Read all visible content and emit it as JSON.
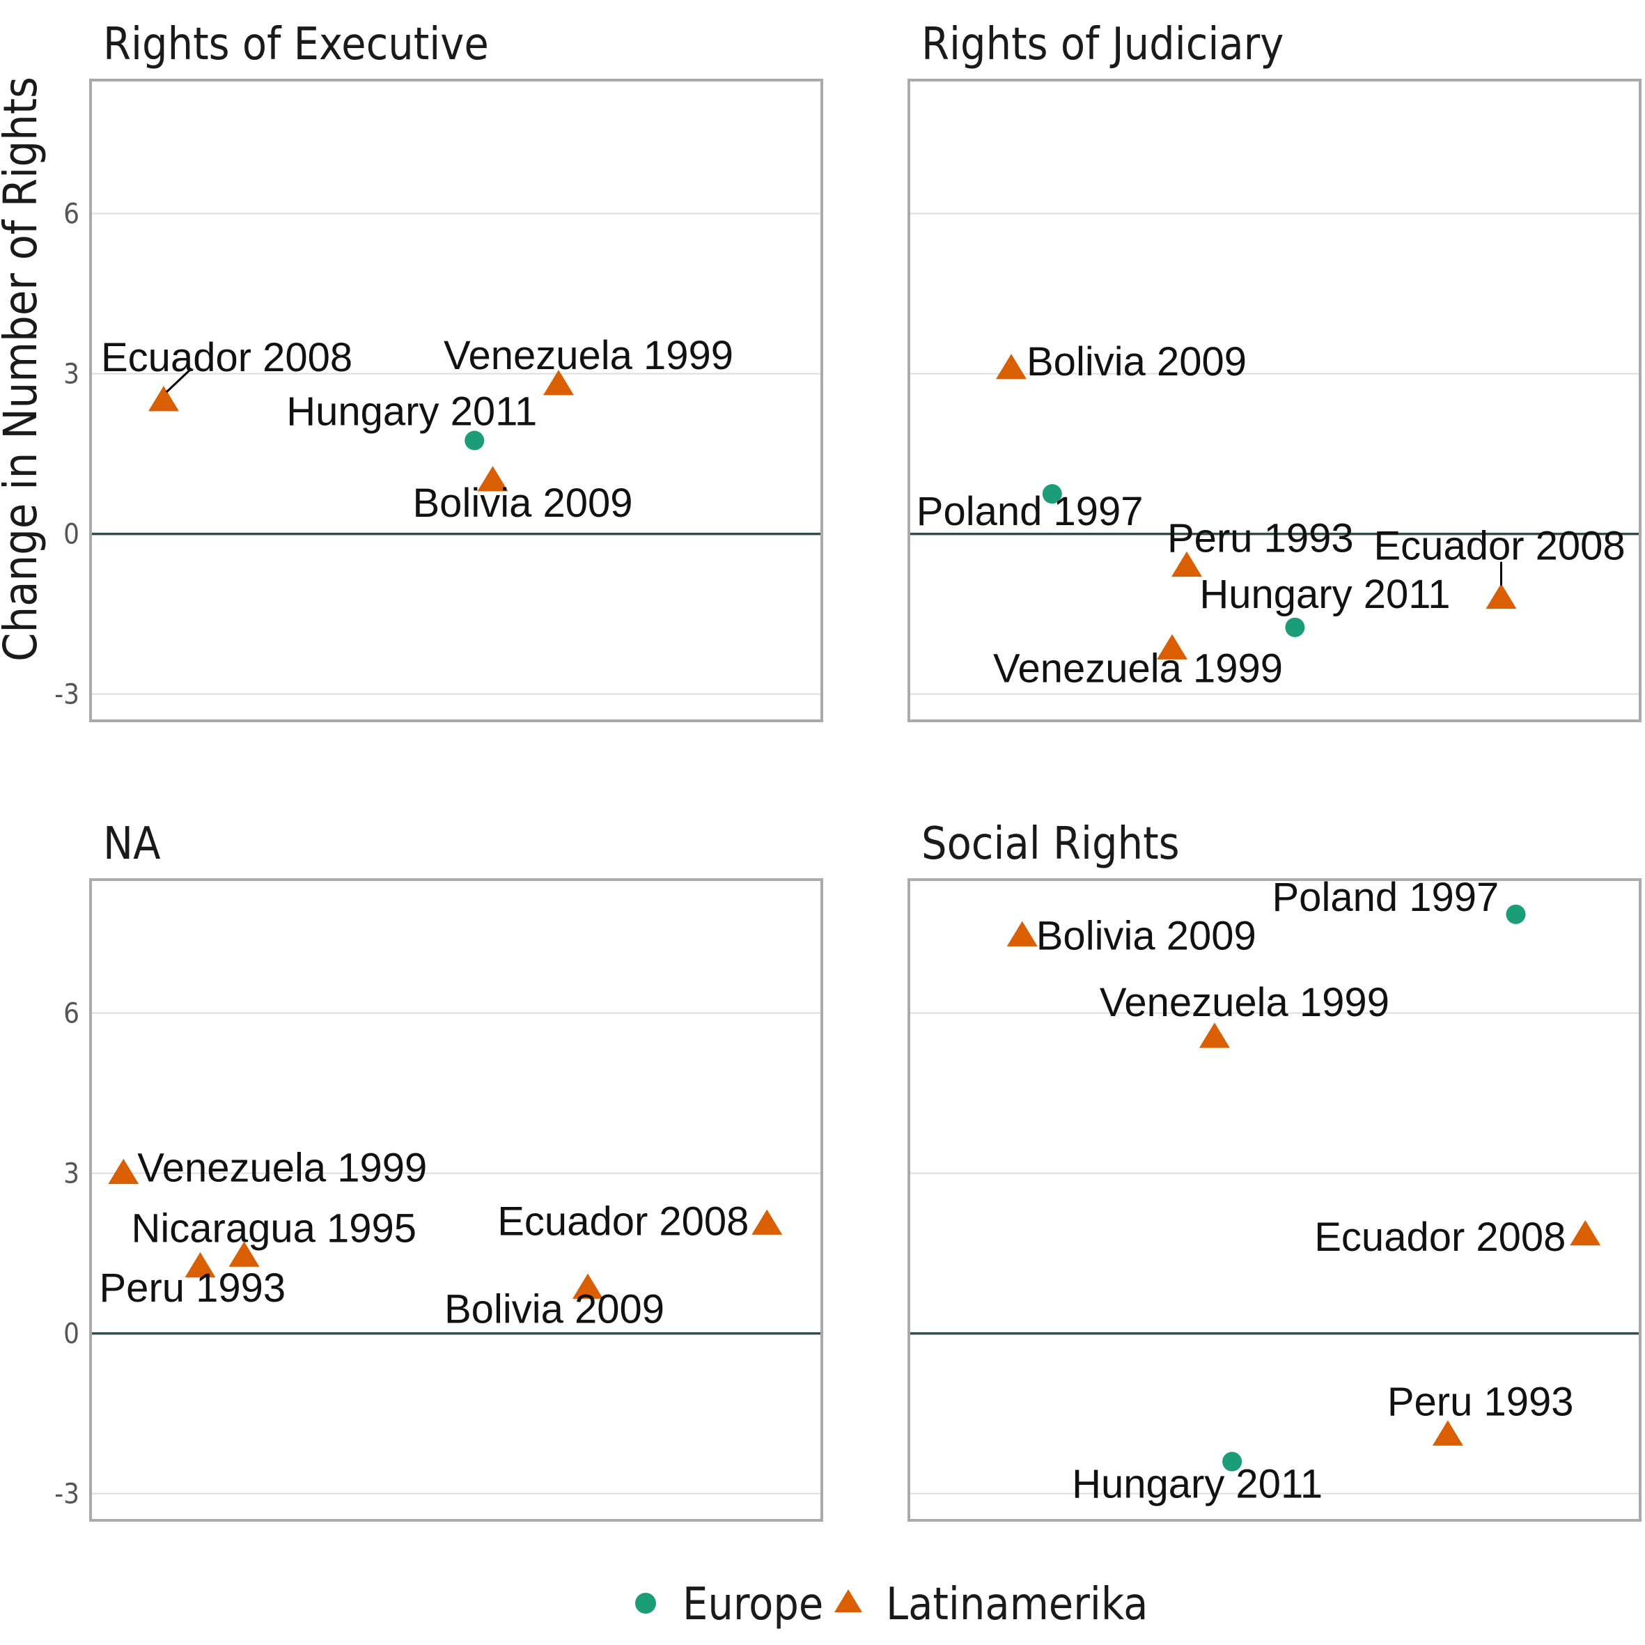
{
  "colors": {
    "Europe": "#1b9e77",
    "Latinamerika": "#d95f02"
  },
  "chart_data": {
    "type": "scatter",
    "ylabel": "Change in Number of Rights",
    "xlabel": "",
    "ylim": [
      -3.5,
      8.5
    ],
    "yticks": [
      -3,
      0,
      3,
      6
    ],
    "ytick_labels": [
      "-3",
      "0",
      "3",
      "6"
    ],
    "grid": true,
    "legend": {
      "position": "bottom",
      "entries": [
        {
          "name": "Europe",
          "shape": "circle"
        },
        {
          "name": "Latinamerika",
          "shape": "triangle"
        }
      ]
    },
    "panels": [
      {
        "title": "Rights of Executive",
        "points": [
          {
            "label": "Ecuador 2008",
            "group": "Latinamerika",
            "x": 0.1,
            "y": 2.5
          },
          {
            "label": "Venezuela 1999",
            "group": "Latinamerika",
            "x": 0.64,
            "y": 2.8
          },
          {
            "label": "Hungary 2011",
            "group": "Europe",
            "x": 0.525,
            "y": 1.75
          },
          {
            "label": "Bolivia 2009",
            "group": "Latinamerika",
            "x": 0.55,
            "y": 1.0
          }
        ]
      },
      {
        "title": "Rights of Judiciary",
        "points": [
          {
            "label": "Bolivia 2009",
            "group": "Latinamerika",
            "x": 0.14,
            "y": 3.1
          },
          {
            "label": "Poland 1997",
            "group": "Europe",
            "x": 0.196,
            "y": 0.75
          },
          {
            "label": "Peru 1993",
            "group": "Latinamerika",
            "x": 0.38,
            "y": -0.6
          },
          {
            "label": "Ecuador 2008",
            "group": "Latinamerika",
            "x": 0.81,
            "y": -1.2
          },
          {
            "label": "Hungary 2011",
            "group": "Europe",
            "x": 0.528,
            "y": -1.75
          },
          {
            "label": "Venezuela 1999",
            "group": "Latinamerika",
            "x": 0.36,
            "y": -2.15
          }
        ]
      },
      {
        "title": "NA",
        "points": [
          {
            "label": "Venezuela 1999",
            "group": "Latinamerika",
            "x": 0.045,
            "y": 3.0
          },
          {
            "label": "Nicaragua 1995",
            "group": "Latinamerika",
            "x": 0.21,
            "y": 1.45
          },
          {
            "label": "Peru 1993",
            "group": "Latinamerika",
            "x": 0.15,
            "y": 1.25
          },
          {
            "label": "Ecuador 2008",
            "group": "Latinamerika",
            "x": 0.925,
            "y": 2.05
          },
          {
            "label": "Bolivia 2009",
            "group": "Latinamerika",
            "x": 0.68,
            "y": 0.85
          }
        ]
      },
      {
        "title": "Social Rights",
        "points": [
          {
            "label": "Poland 1997",
            "group": "Europe",
            "x": 0.83,
            "y": 7.85
          },
          {
            "label": "Bolivia 2009",
            "group": "Latinamerika",
            "x": 0.155,
            "y": 7.45
          },
          {
            "label": "Venezuela 1999",
            "group": "Latinamerika",
            "x": 0.418,
            "y": 5.55
          },
          {
            "label": "Ecuador 2008",
            "group": "Latinamerika",
            "x": 0.925,
            "y": 1.85
          },
          {
            "label": "Peru 1993",
            "group": "Latinamerika",
            "x": 0.737,
            "y": -1.9
          },
          {
            "label": "Hungary 2011",
            "group": "Europe",
            "x": 0.442,
            "y": -2.4
          }
        ]
      }
    ]
  }
}
